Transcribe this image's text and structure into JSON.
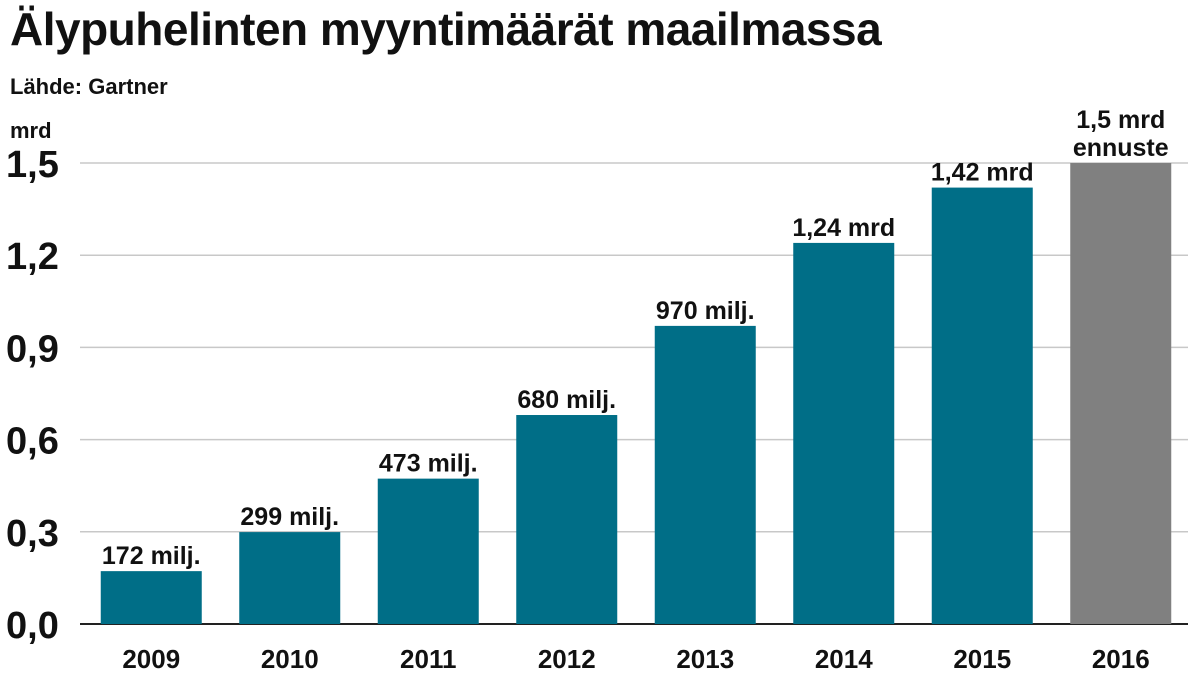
{
  "chart_data": {
    "type": "bar",
    "title": "Älypuhelinten myyntimäärät maailmassa",
    "subtitle": "Lähde: Gartner",
    "ylabel": "mrd",
    "ylim": [
      0,
      1.5
    ],
    "yticks": [
      "0,0",
      "0,3",
      "0,6",
      "0,9",
      "1,2",
      "1,5"
    ],
    "ytick_values": [
      0,
      0.3,
      0.6,
      0.9,
      1.2,
      1.5
    ],
    "grid": true,
    "categories": [
      "2009",
      "2010",
      "2011",
      "2012",
      "2013",
      "2014",
      "2015",
      "2016"
    ],
    "values": [
      0.172,
      0.299,
      0.473,
      0.68,
      0.97,
      1.24,
      1.42,
      1.5
    ],
    "data_labels": [
      [
        "172 milj."
      ],
      [
        "299 milj."
      ],
      [
        "473 milj."
      ],
      [
        "680 milj."
      ],
      [
        "970 milj."
      ],
      [
        "1,24 mrd"
      ],
      [
        "1,42 mrd"
      ],
      [
        "1,5 mrd",
        "ennuste"
      ]
    ],
    "colors": [
      "#006e87",
      "#006e87",
      "#006e87",
      "#006e87",
      "#006e87",
      "#006e87",
      "#006e87",
      "#808080"
    ]
  }
}
